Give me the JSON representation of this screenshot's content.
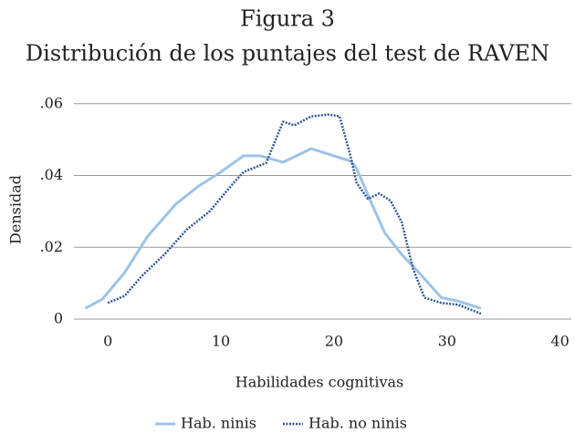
{
  "chart_data": {
    "type": "line",
    "title": "Figura 3",
    "subtitle": "Distribución de los puntajes del test de RAVEN",
    "x_label": "Habilidades cognitivas",
    "y_label": "Densidad",
    "xlim": [
      -3,
      41
    ],
    "xticks": [
      0,
      10,
      20,
      30,
      40
    ],
    "ylim": [
      0,
      0.063
    ],
    "yticks": [
      0,
      {
        "value": 0.02,
        "label": ".02"
      },
      {
        "value": 0.04,
        "label": ".04"
      },
      {
        "value": 0.06,
        "label": ".06"
      }
    ],
    "grid": true,
    "legend": "bottom",
    "series": [
      {
        "name": "Hab. ninis",
        "color": "#9dc3e6",
        "style": "solid",
        "x": [
          -2,
          -0.5,
          1.5,
          3.5,
          6,
          8,
          10,
          12,
          13.5,
          15.5,
          18,
          20,
          21.5,
          22,
          23.5,
          24.5,
          26,
          27.5,
          29.5,
          31,
          33
        ],
        "values": [
          0.003,
          0.0055,
          0.013,
          0.023,
          0.032,
          0.037,
          0.041,
          0.0455,
          0.0455,
          0.0437,
          0.0475,
          0.0455,
          0.044,
          0.042,
          0.031,
          0.024,
          0.018,
          0.013,
          0.006,
          0.005,
          0.003
        ]
      },
      {
        "name": "Hab. no ninis",
        "color": "#2e5597",
        "style": "dotted",
        "x": [
          0,
          1.5,
          3,
          5,
          7,
          9,
          11,
          12,
          14,
          15.5,
          16.5,
          18,
          19.5,
          20.5,
          21.5,
          22,
          23,
          24,
          25,
          26,
          27,
          28,
          29.5,
          31,
          33
        ],
        "values": [
          0.0045,
          0.0065,
          0.012,
          0.018,
          0.025,
          0.03,
          0.0375,
          0.041,
          0.0435,
          0.055,
          0.054,
          0.0565,
          0.057,
          0.0565,
          0.045,
          0.038,
          0.0335,
          0.035,
          0.033,
          0.027,
          0.014,
          0.006,
          0.0045,
          0.004,
          0.0015
        ]
      }
    ]
  }
}
